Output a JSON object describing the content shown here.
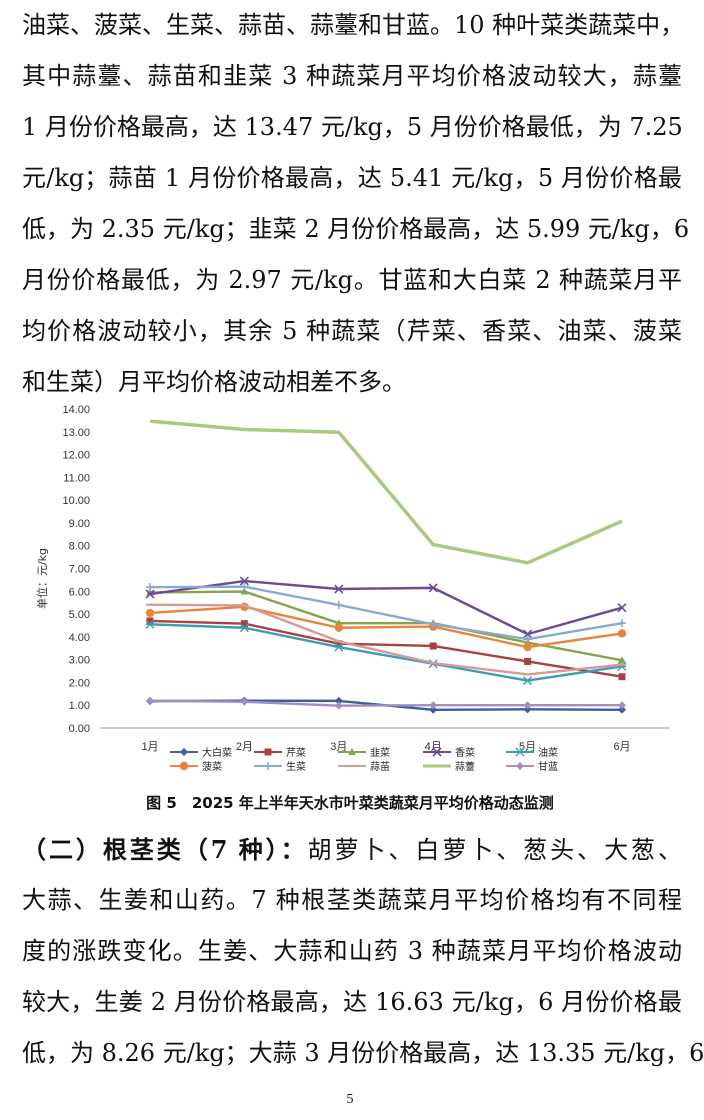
{
  "top_paragraph": [
    "油菜、菠菜、生菜、蒜苗、蒜薹和甘蓝。10 种叶菜类蔬菜中，",
    "其中蒜薹、蒜苗和韭菜 3 种蔬菜月平均价格波动较大，蒜薹",
    "1 月份价格最高，达 13.47 元/kg，5 月份价格最低，为 7.25",
    "元/kg；蒜苗 1 月份价格最高，达 5.41 元/kg，5 月份价格最",
    "低，为 2.35 元/kg；韭菜 2 月份价格最高，达 5.99 元/kg，6",
    "月份价格最低，为 2.97 元/kg。甘蓝和大白菜 2 种蔬菜月平",
    "均价格波动较小，其余 5 种蔬菜（芹菜、香菜、油菜、菠菜",
    "和生菜）月平均价格波动相差不多。"
  ],
  "chart_data": {
    "type": "line",
    "ylabel": "单位：元/kg",
    "ylim": [
      0,
      14
    ],
    "yticks": [
      "0.00",
      "1.00",
      "2.00",
      "3.00",
      "4.00",
      "5.00",
      "6.00",
      "7.00",
      "8.00",
      "9.00",
      "10.00",
      "11.00",
      "12.00",
      "13.00",
      "14.00"
    ],
    "categories": [
      "1月",
      "2月",
      "3月",
      "4月",
      "5月",
      "6月"
    ],
    "series": [
      {
        "name": "大白菜",
        "color": "#3a5f9e",
        "marker": "diamond",
        "values": [
          1.18,
          1.2,
          1.19,
          0.8,
          0.82,
          0.8
        ]
      },
      {
        "name": "芹菜",
        "color": "#a9413f",
        "marker": "square",
        "values": [
          4.7,
          4.58,
          3.7,
          3.6,
          2.92,
          2.25
        ]
      },
      {
        "name": "韭菜",
        "color": "#86a44a",
        "marker": "triangle",
        "values": [
          5.95,
          5.99,
          4.6,
          4.6,
          3.75,
          2.97
        ]
      },
      {
        "name": "香菜",
        "color": "#6c4b93",
        "marker": "x",
        "values": [
          5.88,
          6.45,
          6.1,
          6.15,
          4.12,
          5.28
        ]
      },
      {
        "name": "油菜",
        "color": "#3a9db8",
        "marker": "star",
        "values": [
          4.55,
          4.4,
          3.55,
          2.82,
          2.08,
          2.7
        ]
      },
      {
        "name": "菠菜",
        "color": "#e8853a",
        "marker": "circle",
        "values": [
          5.05,
          5.32,
          4.4,
          4.45,
          3.55,
          4.15
        ]
      },
      {
        "name": "生菜",
        "color": "#8aa8d6",
        "marker": "plus",
        "values": [
          6.18,
          6.2,
          5.4,
          4.55,
          3.9,
          4.6
        ]
      },
      {
        "name": "蒜苗",
        "color": "#d99896",
        "marker": "dash",
        "values": [
          5.41,
          5.38,
          3.8,
          2.85,
          2.35,
          2.78
        ]
      },
      {
        "name": "蒜薹",
        "color": "#a9c97e",
        "marker": "none",
        "values": [
          13.47,
          13.1,
          12.98,
          8.05,
          7.25,
          9.08
        ]
      },
      {
        "name": "甘蓝",
        "color": "#a58cc3",
        "marker": "diamond",
        "values": [
          1.2,
          1.15,
          0.98,
          1.0,
          1.0,
          1.0
        ]
      }
    ]
  },
  "figure_caption": "图 5　2025 年上半年天水市叶菜类蔬菜月平均价格动态监测",
  "section_heading": "（二）根茎类（7 种）：",
  "bottom_paragraph": [
    "胡萝卜、白萝卜、葱头、大葱、",
    "大蒜、生姜和山药。7 种根茎类蔬菜月平均价格均有不同程",
    "度的涨跌变化。生姜、大蒜和山药 3 种蔬菜月平均价格波动",
    "较大，生姜 2 月份价格最高，达 16.63 元/kg，6 月份价格最",
    "低，为 8.26 元/kg；大蒜 3 月份价格最高，达 13.35 元/kg，6"
  ],
  "page_number": "5"
}
